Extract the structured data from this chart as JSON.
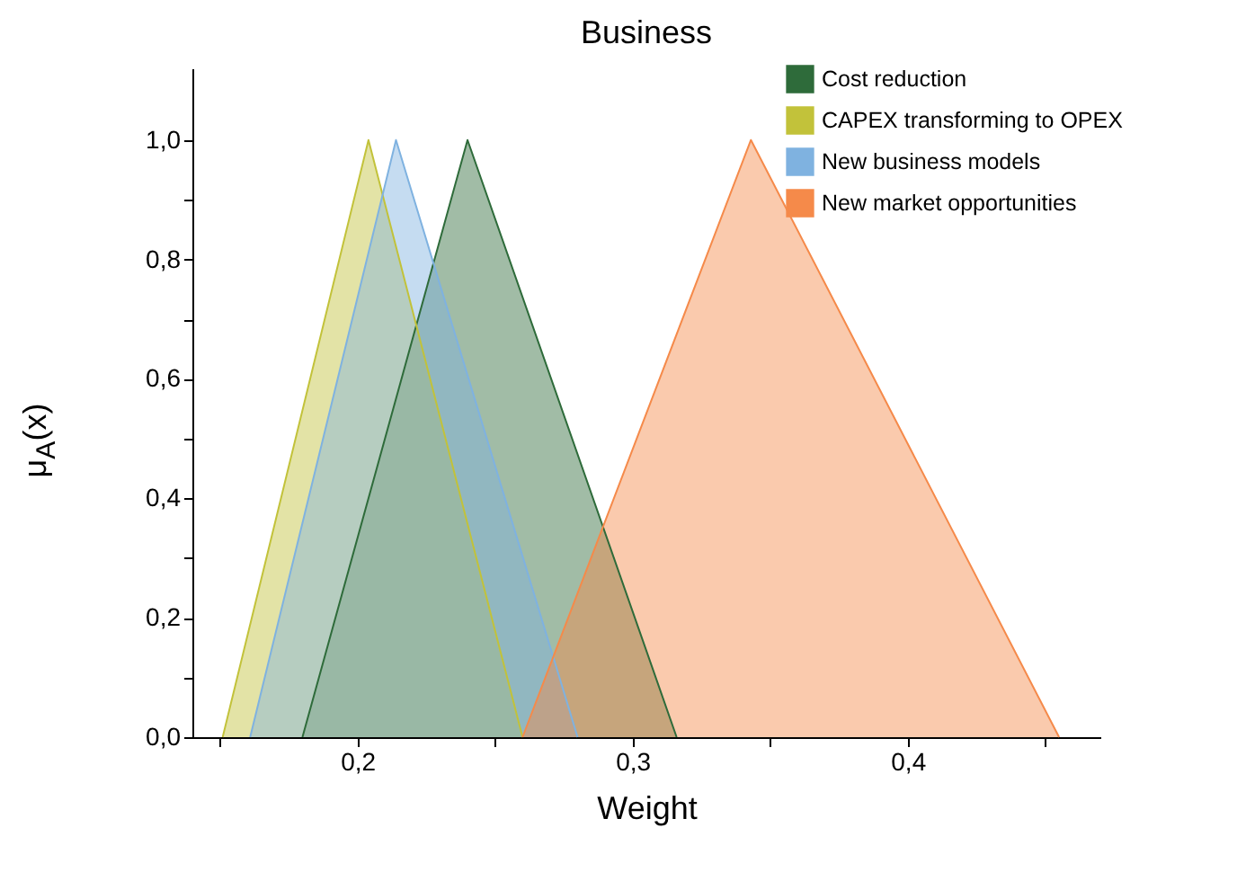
{
  "chart_data": {
    "type": "area",
    "title": "Business",
    "xlabel": "Weight",
    "ylabel": "μ$_{A}$(x)",
    "xlim": [
      0.14,
      0.47
    ],
    "ylim": [
      0,
      1.12
    ],
    "xticks": [
      {
        "value": 0.15,
        "label": null
      },
      {
        "value": 0.2,
        "label": "0,2"
      },
      {
        "value": 0.25,
        "label": null
      },
      {
        "value": 0.3,
        "label": "0,3"
      },
      {
        "value": 0.35,
        "label": null
      },
      {
        "value": 0.4,
        "label": "0,4"
      },
      {
        "value": 0.45,
        "label": null
      }
    ],
    "yticks": [
      {
        "value": 0,
        "label": "0,0"
      },
      {
        "value": 0.1,
        "label": null
      },
      {
        "value": 0.2,
        "label": "0,2"
      },
      {
        "value": 0.3,
        "label": null
      },
      {
        "value": 0.4,
        "label": "0,4"
      },
      {
        "value": 0.5,
        "label": null
      },
      {
        "value": 0.6,
        "label": "0,6"
      },
      {
        "value": 0.7,
        "label": null
      },
      {
        "value": 0.8,
        "label": "0,8"
      },
      {
        "value": 0.9,
        "label": null
      },
      {
        "value": 1.0,
        "label": "1,0"
      }
    ],
    "grid": false,
    "legend": "top right",
    "series": [
      {
        "name": "Cost reduction",
        "color": "#2e6b3a",
        "x": [
          0.18,
          0.24,
          0.316
        ],
        "values": [
          0,
          1,
          0
        ]
      },
      {
        "name": "CAPEX transforming to OPEX",
        "color": "#c2c23a",
        "x": [
          0.151,
          0.204,
          0.26
        ],
        "values": [
          0,
          1,
          0
        ]
      },
      {
        "name": "New business models",
        "color": "#7fb2e0",
        "x": [
          0.161,
          0.214,
          0.28
        ],
        "values": [
          0,
          1,
          0
        ]
      },
      {
        "name": "New market opportunities",
        "color": "#f58a4a",
        "x": [
          0.26,
          0.343,
          0.455
        ],
        "values": [
          0,
          1,
          0
        ]
      }
    ]
  }
}
